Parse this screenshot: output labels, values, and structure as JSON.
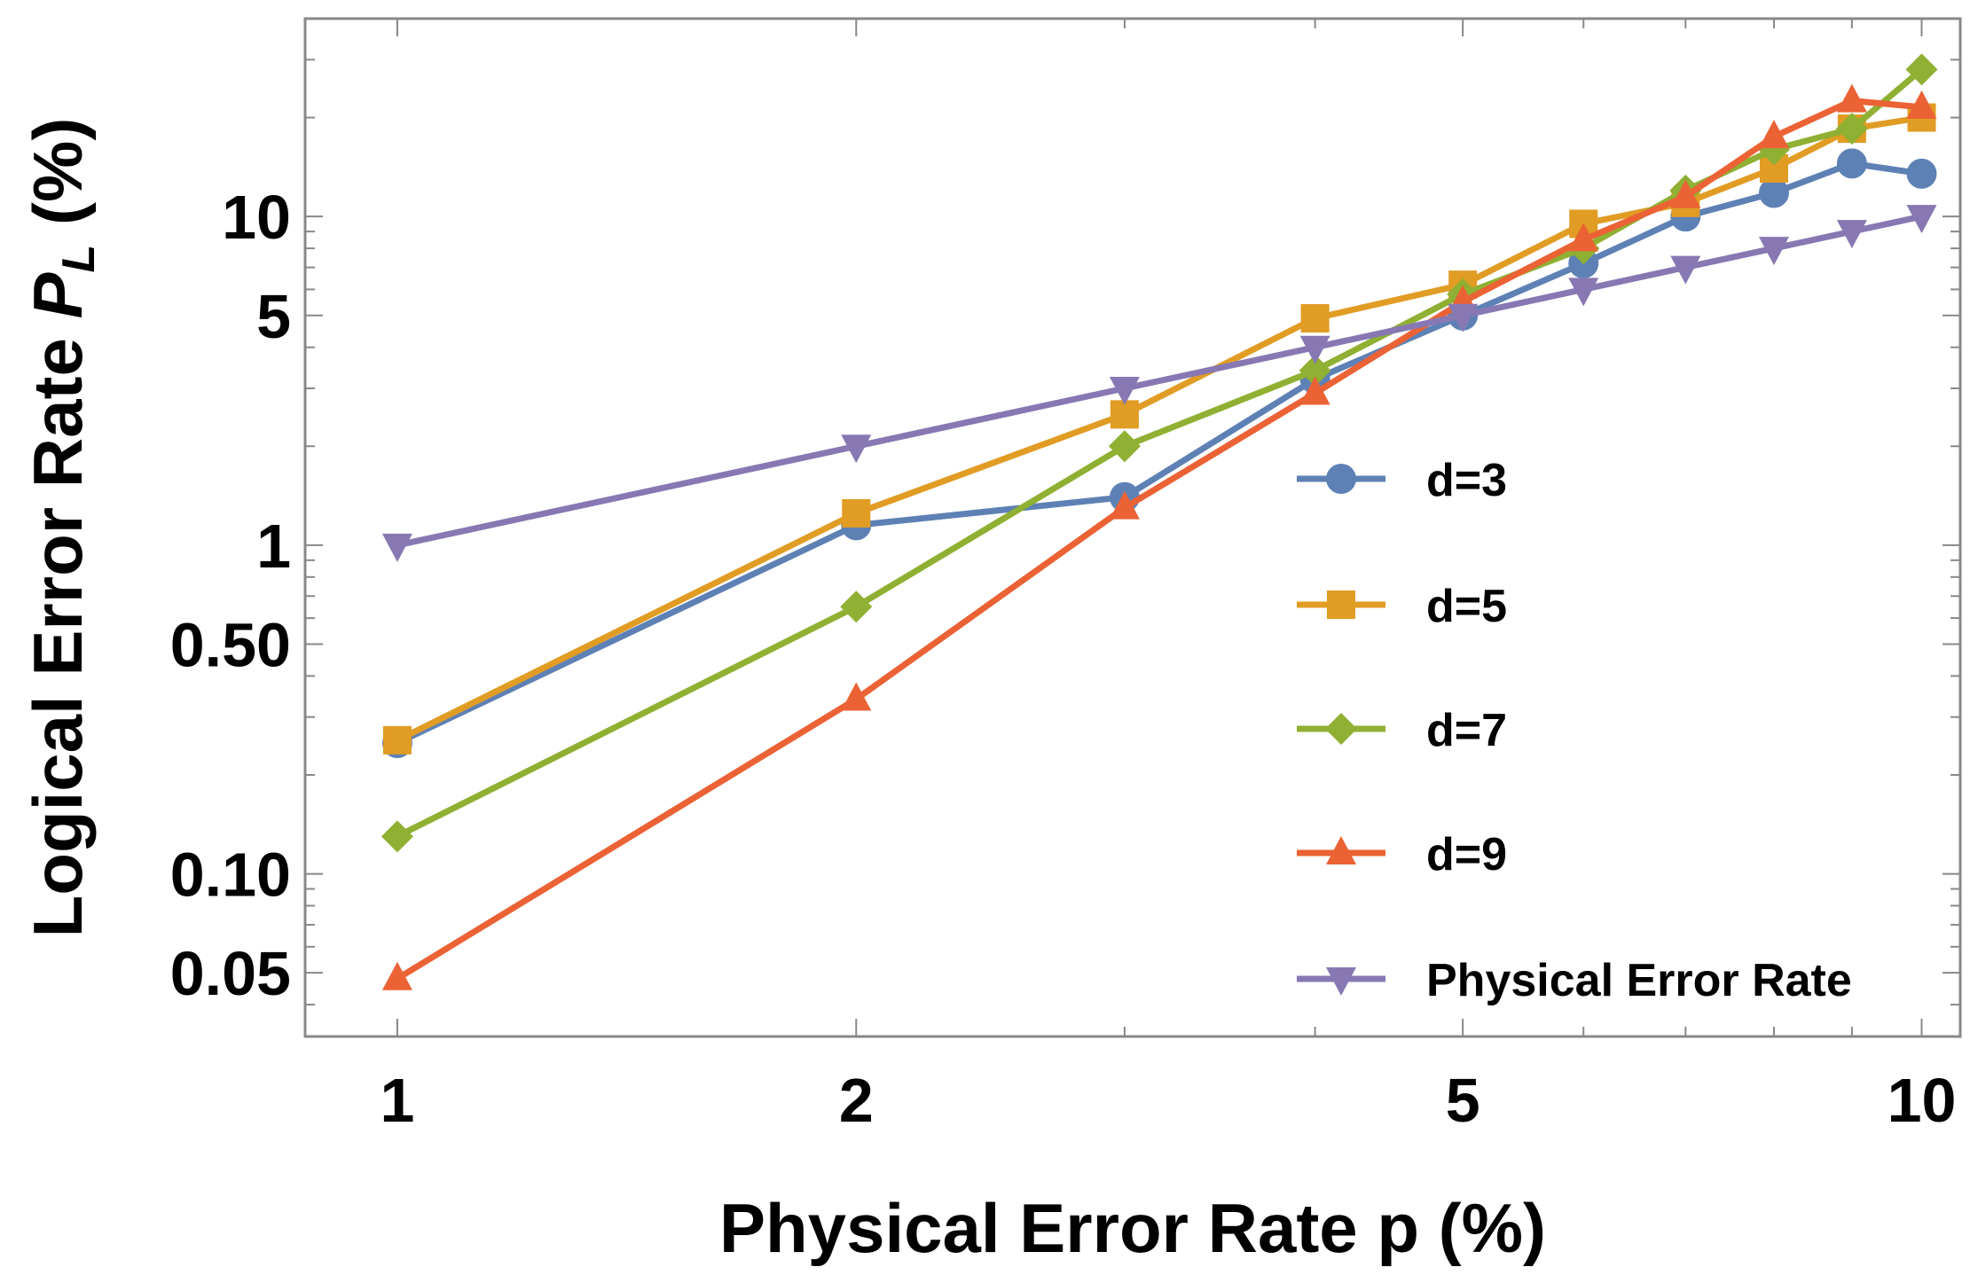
{
  "chart_data": {
    "type": "line",
    "x_scale": "log",
    "y_scale": "log",
    "xlabel": "Physical Error Rate p (%)",
    "ylabel_prefix": "Logical Error Rate ",
    "ylabel_symbol": "P",
    "ylabel_subscript": "L",
    "ylabel_suffix": " (%)",
    "xlim": [
      0.87,
      10.6
    ],
    "ylim": [
      0.032,
      40
    ],
    "x_ticks": [
      {
        "value": 1,
        "label": "1"
      },
      {
        "value": 2,
        "label": "2"
      },
      {
        "value": 5,
        "label": "5"
      },
      {
        "value": 10,
        "label": "10"
      }
    ],
    "y_ticks": [
      {
        "value": 0.05,
        "label": "0.05"
      },
      {
        "value": 0.1,
        "label": "0.10"
      },
      {
        "value": 0.5,
        "label": "0.50"
      },
      {
        "value": 1,
        "label": "1"
      },
      {
        "value": 5,
        "label": "5"
      },
      {
        "value": 10,
        "label": "10"
      }
    ],
    "grid": false,
    "legend_position": "bottom-right",
    "x": [
      1,
      2,
      3,
      4,
      5,
      6,
      7,
      8,
      9,
      10
    ],
    "series": [
      {
        "name": "d=3",
        "color": "#5e81b5",
        "marker": "circle",
        "x": [
          1,
          2,
          3,
          4,
          5,
          6,
          7,
          8,
          9,
          10
        ],
        "values": [
          0.25,
          1.15,
          1.4,
          3.2,
          5.0,
          7.2,
          10.0,
          11.8,
          14.5,
          13.5
        ]
      },
      {
        "name": "d=5",
        "color": "#e19c24",
        "marker": "square",
        "x": [
          1,
          2,
          3,
          4,
          5,
          6,
          7,
          8,
          9,
          10
        ],
        "values": [
          0.255,
          1.25,
          2.5,
          4.9,
          6.2,
          9.5,
          11.0,
          14.0,
          18.5,
          20.0
        ]
      },
      {
        "name": "d=7",
        "color": "#8fb032",
        "marker": "diamond",
        "x": [
          1,
          2,
          3,
          4,
          5,
          6,
          7,
          8,
          9,
          10
        ],
        "values": [
          0.13,
          0.65,
          2.0,
          3.4,
          5.8,
          8.0,
          12.0,
          16.0,
          18.5,
          28.0
        ]
      },
      {
        "name": "d=9",
        "color": "#eb6235",
        "marker": "triangle-up",
        "x": [
          1,
          2,
          3,
          4,
          5,
          6,
          7,
          8,
          9,
          10
        ],
        "values": [
          0.048,
          0.34,
          1.3,
          2.9,
          5.5,
          8.5,
          11.5,
          17.5,
          22.5,
          21.5
        ]
      },
      {
        "name": "Physical Error Rate",
        "color": "#8778b3",
        "marker": "triangle-down",
        "x": [
          1,
          2,
          3,
          4,
          5,
          6,
          7,
          8,
          9,
          10
        ],
        "values": [
          1,
          2,
          3,
          4,
          5,
          6,
          7,
          8,
          9,
          10
        ]
      }
    ]
  }
}
